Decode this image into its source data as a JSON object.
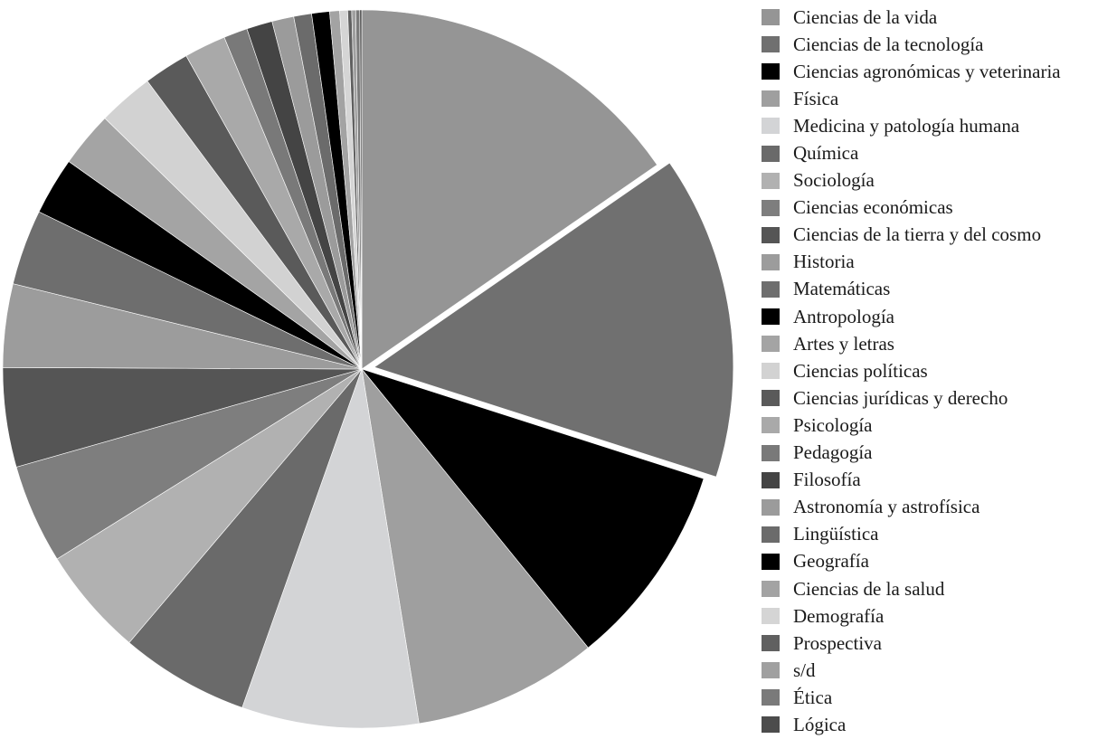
{
  "chart_data": {
    "type": "pie",
    "title": "",
    "legend_position": "right",
    "start_angle_deg": 0,
    "direction": "clockwise",
    "exploded_slice": "Ciencias de la tecnología",
    "slices": [
      {
        "label": "Ciencias de la vida",
        "value": 17.2,
        "color": "#959595"
      },
      {
        "label": "Ciencias de la tecnología",
        "value": 16.3,
        "color": "#707070"
      },
      {
        "label": "Ciencias agronómicas y veterinaria",
        "value": 10.3,
        "color": "#000000"
      },
      {
        "label": "Física",
        "value": 9.3,
        "color": "#9f9f9f"
      },
      {
        "label": "Medicina y patología humana",
        "value": 8.9,
        "color": "#d3d4d6"
      },
      {
        "label": "Química",
        "value": 6.5,
        "color": "#6a6a6a"
      },
      {
        "label": "Sociología",
        "value": 5.5,
        "color": "#b1b1b1"
      },
      {
        "label": "Ciencias económicas",
        "value": 5.0,
        "color": "#7e7e7e"
      },
      {
        "label": "Ciencias de la tierra y del cosmo",
        "value": 5.0,
        "color": "#555555"
      },
      {
        "label": "Historia",
        "value": 4.2,
        "color": "#9c9c9c"
      },
      {
        "label": "Matemáticas",
        "value": 3.8,
        "color": "#6e6e6e"
      },
      {
        "label": "Antropología",
        "value": 2.9,
        "color": "#000000"
      },
      {
        "label": "Artes y letras",
        "value": 2.8,
        "color": "#a4a4a4"
      },
      {
        "label": "Ciencias políticas",
        "value": 2.8,
        "color": "#d2d2d2"
      },
      {
        "label": "Ciencias jurídicas y derecho",
        "value": 2.3,
        "color": "#5a5a5a"
      },
      {
        "label": "Psicología",
        "value": 2.1,
        "color": "#a9a9a9"
      },
      {
        "label": "Pedagogía",
        "value": 1.2,
        "color": "#797979"
      },
      {
        "label": "Filosofía",
        "value": 1.3,
        "color": "#444444"
      },
      {
        "label": "Astronomía y astrofísica",
        "value": 1.1,
        "color": "#9b9b9b"
      },
      {
        "label": "Lingüística",
        "value": 0.9,
        "color": "#6b6b6b"
      },
      {
        "label": "Geografía",
        "value": 0.9,
        "color": "#000000"
      },
      {
        "label": "Ciencias de la salud",
        "value": 0.5,
        "color": "#a3a3a3"
      },
      {
        "label": "Demografía",
        "value": 0.4,
        "color": "#d5d5d5"
      },
      {
        "label": "Prospectiva",
        "value": 0.2,
        "color": "#606060"
      },
      {
        "label": "s/d",
        "value": 0.2,
        "color": "#a0a0a0"
      },
      {
        "label": "Ética",
        "value": 0.2,
        "color": "#7a7a7a"
      },
      {
        "label": "Lógica",
        "value": 0.1,
        "color": "#4c4c4c"
      }
    ]
  }
}
